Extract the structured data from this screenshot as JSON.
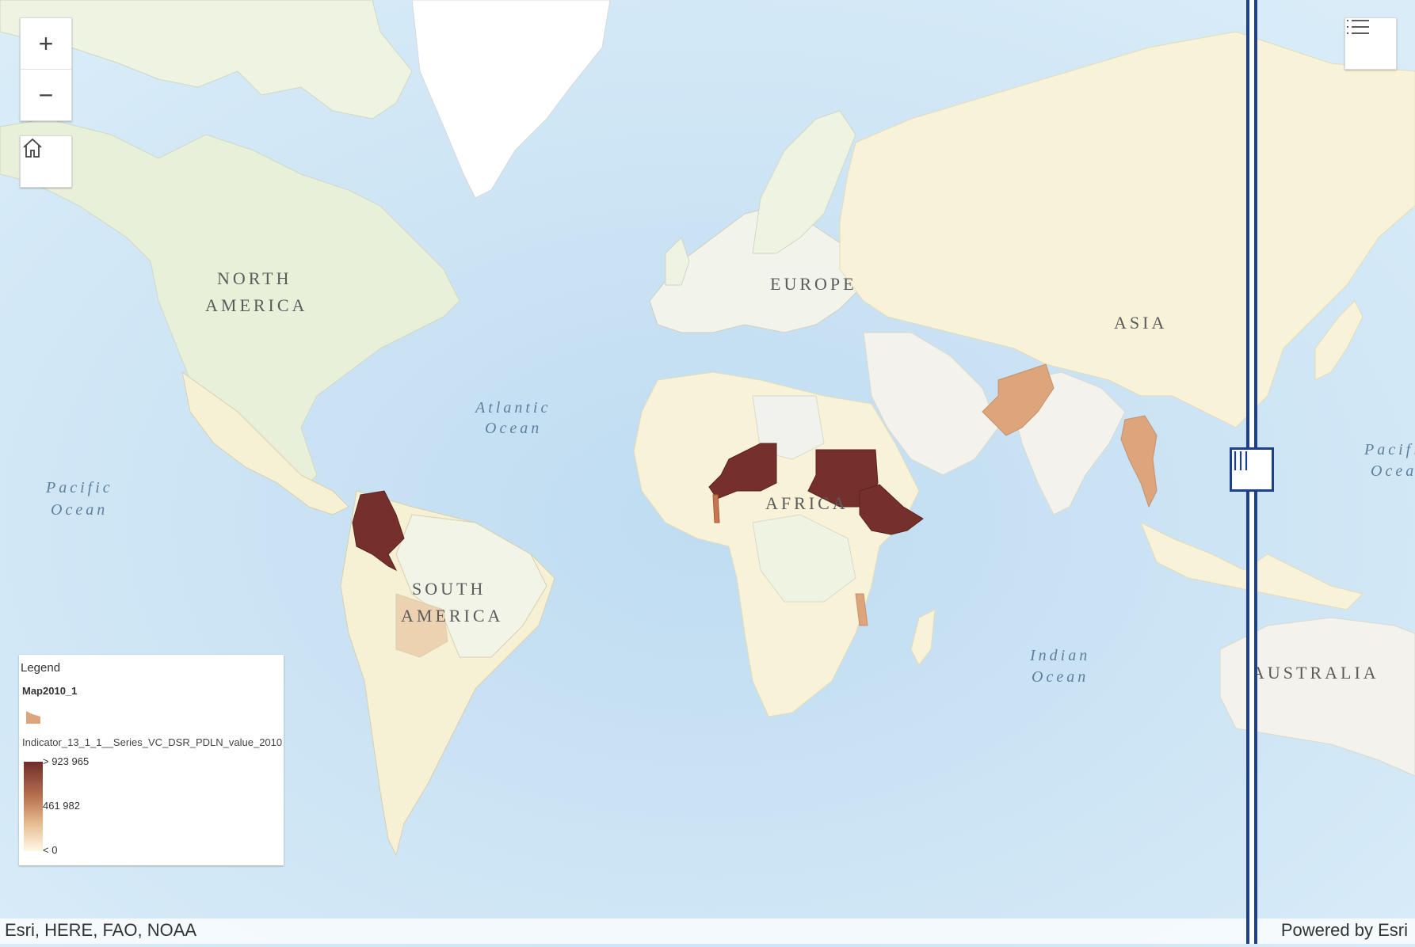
{
  "map": {
    "continents": {
      "north_america_1": "NORTH",
      "north_america_2": "AMERICA",
      "south_america_1": "SOUTH",
      "south_america_2": "AMERICA",
      "europe": "EUROPE",
      "asia": "ASIA",
      "africa": "AFRICA",
      "australia": "AUSTRALIA"
    },
    "oceans": {
      "atlantic_1": "Atlantic",
      "atlantic_2": "Ocean",
      "pacific_w_1": "Pacific",
      "pacific_w_2": "Ocean",
      "pacific_e_1": "Pacific",
      "pacific_e_2": "Ocean",
      "indian_1": "Indian",
      "indian_2": "Ocean"
    },
    "colors": {
      "water": "#cfe6f5",
      "land": "#f7f2d8",
      "high": "#75302c",
      "mid": "#dca57c",
      "swipe": "#1e3f8b"
    }
  },
  "controls": {
    "zoom_in": "+",
    "zoom_out": "−",
    "home_icon": "home-icon",
    "layer_list_icon": "list-icon"
  },
  "legend": {
    "title": "Legend",
    "layer": "Map2010_1",
    "field": "Indicator_13_1_1__Series_VC_DSR_PDLN_value_2010",
    "max_label": "> 923 965",
    "mid_label": "461 982",
    "min_label": "< 0"
  },
  "attribution": {
    "sources": "Esri, HERE, FAO, NOAA",
    "powered": "Powered by Esri"
  }
}
